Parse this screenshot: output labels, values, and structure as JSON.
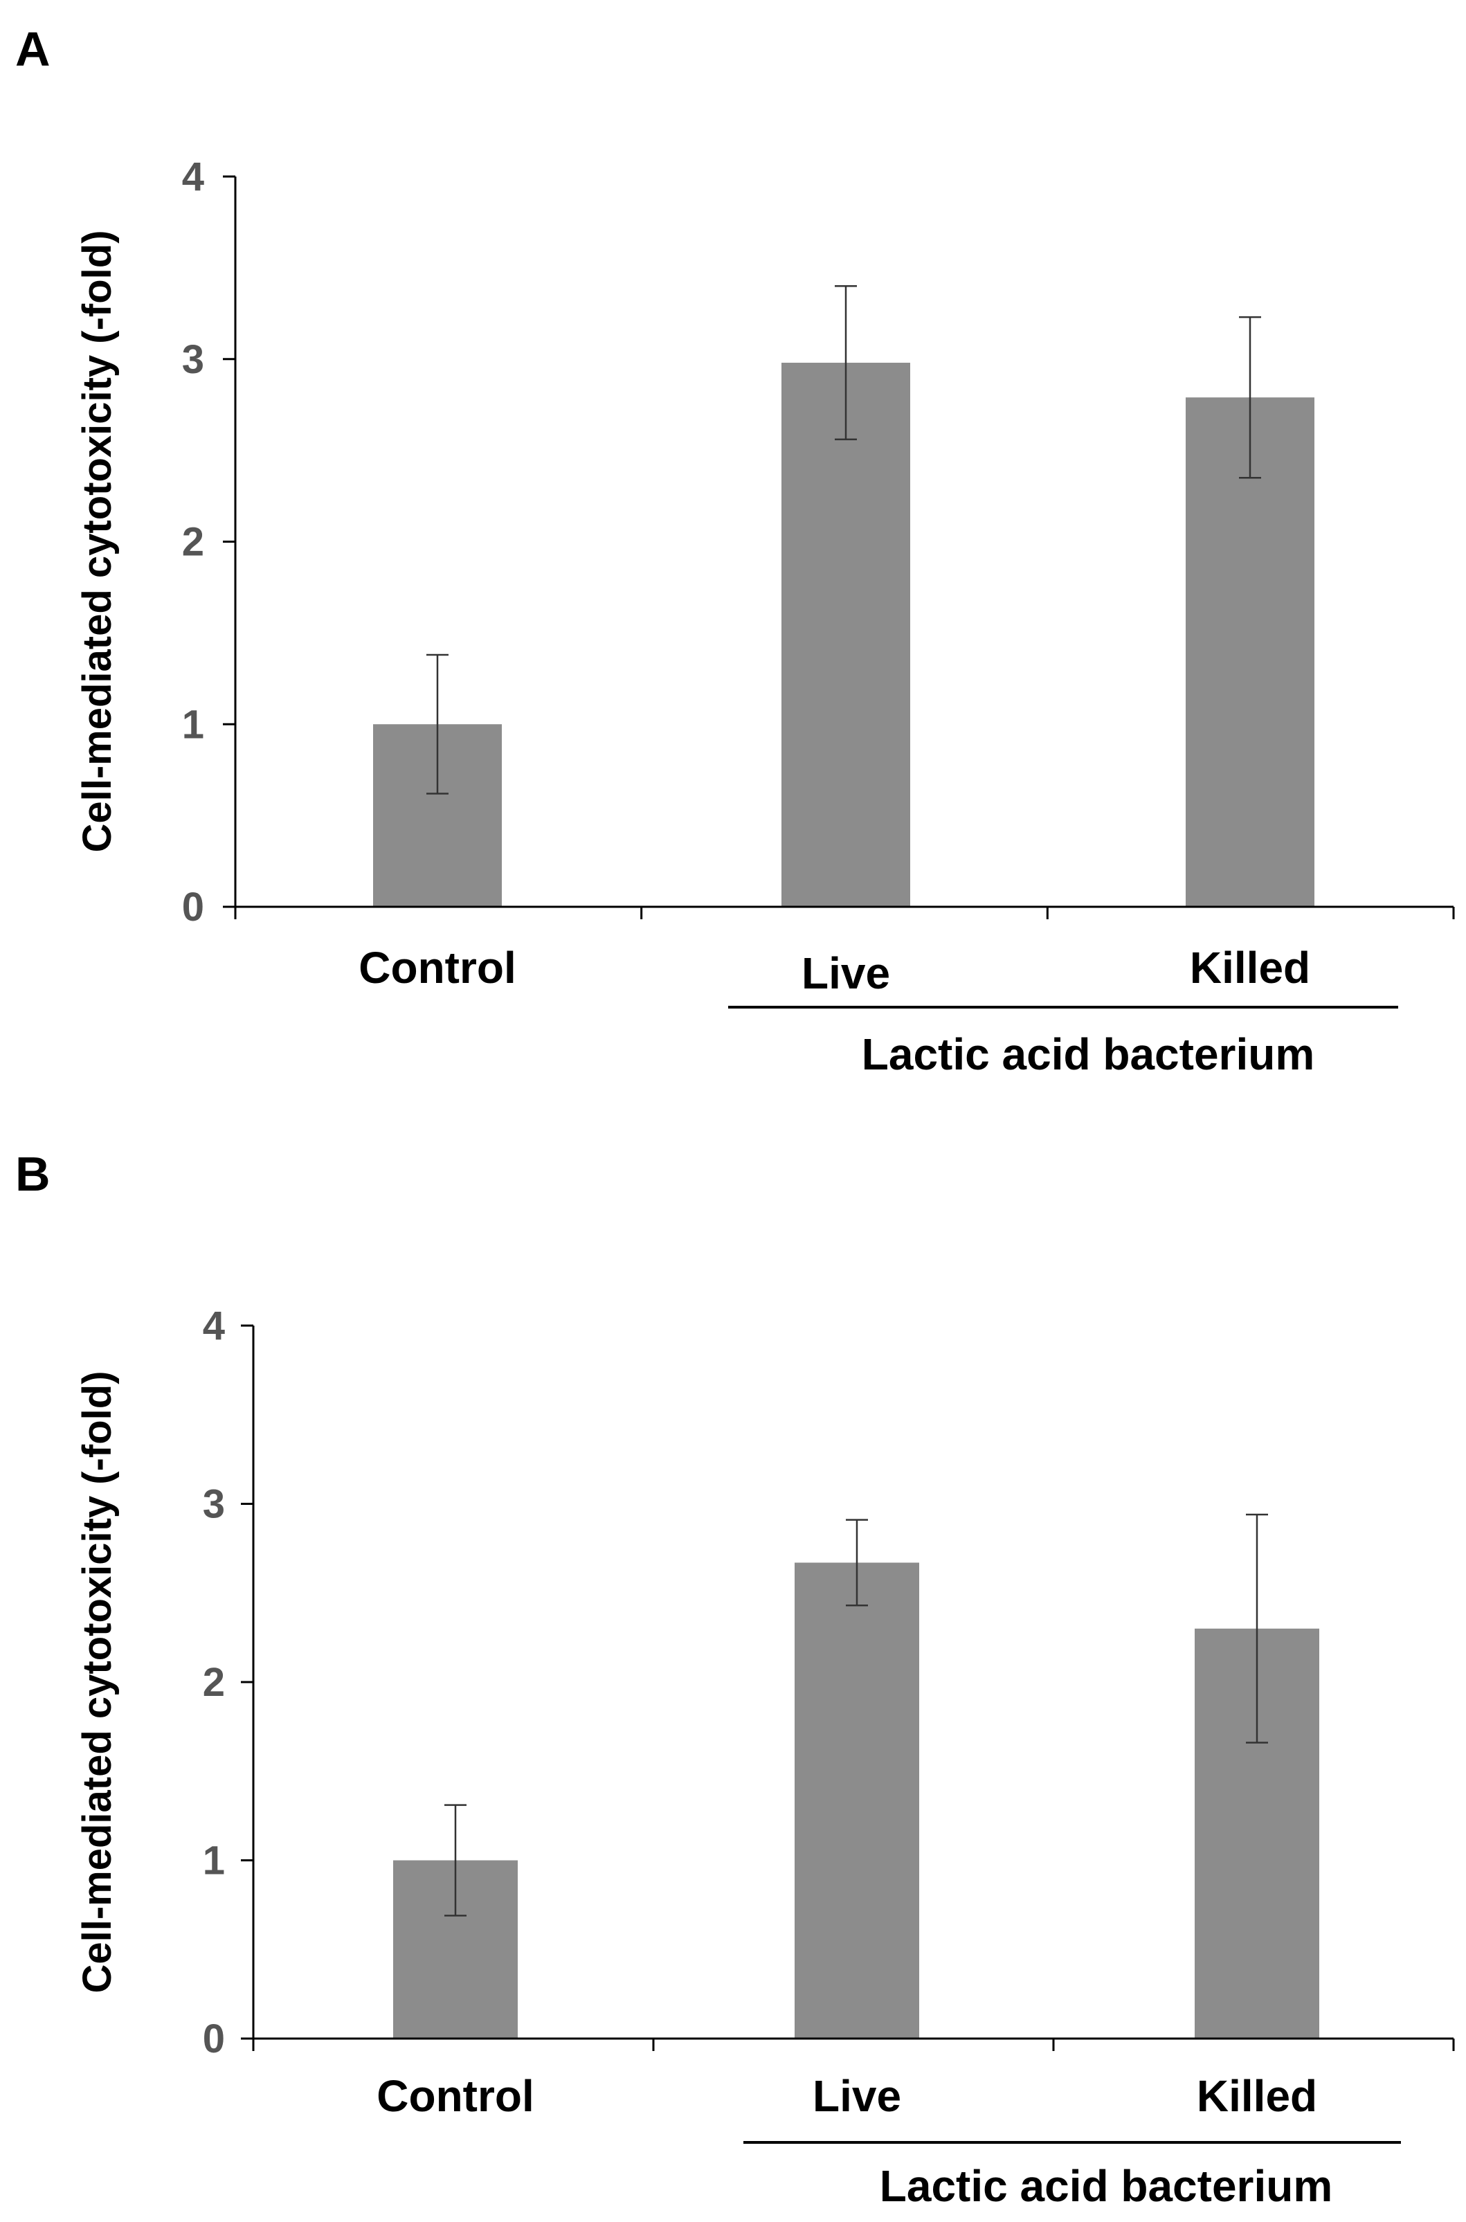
{
  "chart_data": [
    {
      "panel": "A",
      "type": "bar",
      "categories": [
        "Control",
        "Live",
        "Killed"
      ],
      "values": [
        1.0,
        2.98,
        2.79
      ],
      "errors": [
        0.38,
        0.42,
        0.44
      ],
      "ylabel": "Cell-mediated cytotoxicity (-fold)",
      "ylim": [
        0,
        4
      ],
      "yticks": [
        "0",
        "1",
        "2",
        "3",
        "4"
      ],
      "group_label": "Lactic acid bacterium",
      "grid": false,
      "colors": {
        "bar": "#8c8c8c",
        "axis": "#000000",
        "tick_text": "#555555"
      }
    },
    {
      "panel": "B",
      "type": "bar",
      "categories": [
        "Control",
        "Live",
        "Killed"
      ],
      "values": [
        1.0,
        2.67,
        2.3
      ],
      "errors": [
        0.31,
        0.24,
        0.64
      ],
      "ylabel": "Cell-mediated cytotoxicity (-fold)",
      "ylim": [
        0,
        4
      ],
      "yticks": [
        "0",
        "1",
        "2",
        "3",
        "4"
      ],
      "group_label": "Lactic acid bacterium",
      "grid": false,
      "colors": {
        "bar": "#8c8c8c",
        "axis": "#000000",
        "tick_text": "#555555"
      }
    }
  ]
}
